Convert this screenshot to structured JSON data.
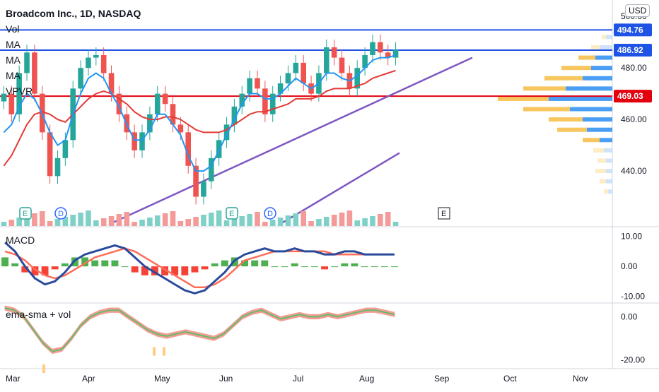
{
  "header": {
    "title": "Broadcom Inc., 1D, NASDAQ",
    "indicators": [
      "Vol",
      "MA",
      "MA",
      "MA",
      "VPVR"
    ],
    "currency": "USD"
  },
  "panes": {
    "macd_label": "MACD",
    "osc_label": "ema-sma + vol"
  },
  "event_markers": [
    "E",
    "D",
    "E",
    "D",
    "E"
  ],
  "colors": {
    "up": "#26a69a",
    "down": "#ef5350",
    "ma_fast": "#2196f3",
    "ma_slow": "#e53935",
    "trend": "#7e57c2",
    "resistance": "#1e53e5",
    "support": "#e3000f",
    "macd": "#2a4a9c",
    "signal": "#ff6d5a"
  },
  "chart_data": [
    {
      "type": "line",
      "title": "Broadcom Inc., 1D, NASDAQ",
      "x": [
        "Mar",
        "Apr",
        "May",
        "Jun",
        "Jul",
        "Aug",
        "Sep",
        "Oct",
        "Nov"
      ],
      "y_ticks": [
        "500.00",
        "480.00",
        "460.00",
        "440.00"
      ],
      "ylim": [
        420,
        505
      ],
      "price_labels": [
        {
          "value": 494.76,
          "label": "494.76",
          "color": "#1e53e5"
        },
        {
          "value": 486.92,
          "label": "486.92",
          "color": "#1e53e5"
        },
        {
          "value": 469.03,
          "label": "469.03",
          "color": "#e3000f"
        }
      ],
      "close_series": [
        470,
        462,
        478,
        486,
        470,
        455,
        438,
        445,
        452,
        472,
        480,
        484,
        485,
        478,
        470,
        462,
        455,
        448,
        455,
        462,
        470,
        466,
        458,
        455,
        442,
        430,
        436,
        445,
        452,
        458,
        465,
        470,
        476,
        472,
        462,
        470,
        474,
        478,
        482,
        474,
        470,
        478,
        488,
        484,
        478,
        472,
        480,
        485,
        490,
        486,
        484,
        487
      ],
      "ma_fast_series": [
        455,
        458,
        465,
        470,
        468,
        462,
        455,
        450,
        452,
        462,
        470,
        476,
        478,
        476,
        470,
        465,
        458,
        452,
        452,
        456,
        462,
        462,
        458,
        454,
        446,
        440,
        440,
        442,
        448,
        454,
        460,
        466,
        470,
        470,
        468,
        468,
        470,
        473,
        476,
        474,
        472,
        474,
        478,
        478,
        476,
        475,
        477,
        480,
        483,
        484,
        484,
        485
      ],
      "ma_slow_series": [
        442,
        446,
        452,
        458,
        462,
        463,
        462,
        460,
        459,
        462,
        465,
        468,
        470,
        471,
        470,
        468,
        466,
        463,
        461,
        460,
        460,
        461,
        461,
        460,
        458,
        456,
        455,
        455,
        455,
        456,
        458,
        460,
        462,
        463,
        463,
        464,
        465,
        466,
        468,
        468,
        468,
        469,
        471,
        472,
        472,
        472,
        473,
        474,
        476,
        477,
        478,
        479
      ],
      "volume_profile": [
        {
          "price": 492,
          "up": 2,
          "down": 3
        },
        {
          "price": 488,
          "up": 4,
          "down": 6
        },
        {
          "price": 484,
          "up": 8,
          "down": 8
        },
        {
          "price": 480,
          "up": 14,
          "down": 10
        },
        {
          "price": 476,
          "up": 18,
          "down": 14
        },
        {
          "price": 472,
          "up": 20,
          "down": 22
        },
        {
          "price": 468,
          "up": 24,
          "down": 30
        },
        {
          "price": 464,
          "up": 22,
          "down": 20
        },
        {
          "price": 460,
          "up": 16,
          "down": 14
        },
        {
          "price": 456,
          "up": 14,
          "down": 12
        },
        {
          "price": 452,
          "up": 8,
          "down": 6
        },
        {
          "price": 448,
          "up": 5,
          "down": 4
        },
        {
          "price": 444,
          "up": 4,
          "down": 3
        },
        {
          "price": 440,
          "up": 5,
          "down": 3
        },
        {
          "price": 436,
          "up": 3,
          "down": 3
        },
        {
          "price": 432,
          "up": 2,
          "down": 2
        }
      ]
    },
    {
      "type": "line",
      "title": "MACD",
      "y_ticks": [
        "10.00",
        "0.00",
        "-10.00"
      ],
      "ylim": [
        -12,
        13
      ],
      "macd": [
        8,
        5,
        0,
        -4,
        -6,
        -5,
        -2,
        2,
        4,
        5,
        6,
        7,
        6,
        3,
        0,
        -2,
        -4,
        -6,
        -8,
        -9,
        -8,
        -5,
        -2,
        2,
        4,
        5,
        6,
        5,
        5,
        6,
        5,
        5,
        4,
        4,
        5,
        5,
        4,
        4,
        4,
        4
      ],
      "signal": [
        5,
        4,
        2,
        -1,
        -3,
        -4,
        -3,
        -1,
        1,
        3,
        4,
        5,
        6,
        5,
        3,
        1,
        -1,
        -3,
        -5,
        -7,
        -7,
        -6,
        -4,
        -1,
        2,
        3,
        4,
        5,
        5,
        5,
        5,
        5,
        5,
        4,
        4,
        4,
        4,
        4,
        4,
        4
      ]
    },
    {
      "type": "line",
      "title": "ema-sma + vol",
      "y_ticks": [
        "0.00",
        "-20.00"
      ],
      "ylim": [
        -24,
        6
      ],
      "series": [
        4,
        3,
        0,
        -6,
        -12,
        -16,
        -15,
        -10,
        -4,
        0,
        2,
        3,
        3,
        0,
        -3,
        -6,
        -8,
        -9,
        -8,
        -7,
        -8,
        -9,
        -10,
        -8,
        -4,
        0,
        2,
        3,
        1,
        -1,
        0,
        1,
        0,
        0,
        1,
        0,
        1,
        2,
        3,
        3,
        2,
        1
      ]
    }
  ]
}
